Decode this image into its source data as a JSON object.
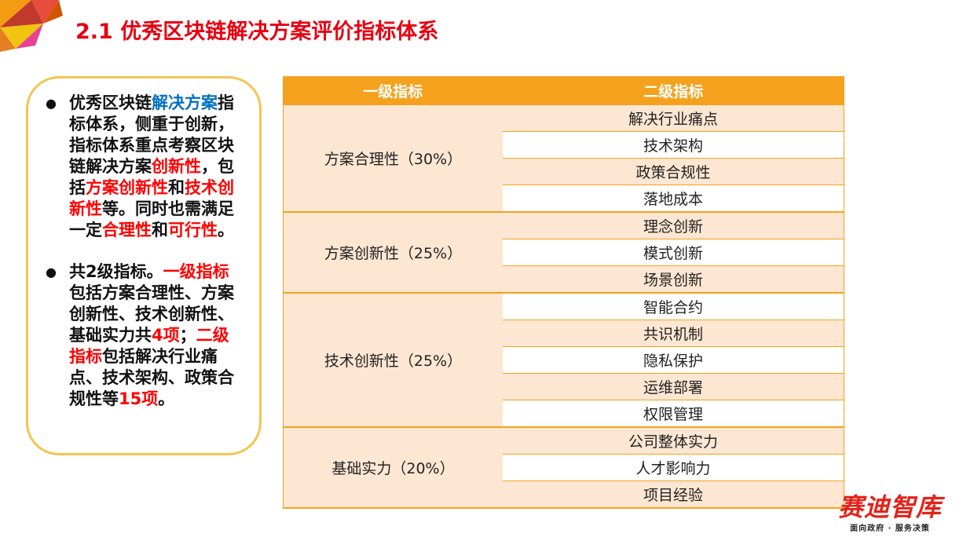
{
  "header": {
    "title": "2.1 优秀区块链解决方案评价指标体系"
  },
  "bullets": [
    {
      "runs": [
        {
          "text": "优秀区块链"
        },
        {
          "text": "解决方案",
          "color": "#0070c0"
        },
        {
          "text": "指标体系，侧重于创新，指标体系重点考察区块链解决方案"
        },
        {
          "text": "创新性",
          "color": "#ff0000"
        },
        {
          "text": "，包括"
        },
        {
          "text": "方案创新性",
          "color": "#ff0000"
        },
        {
          "text": "和"
        },
        {
          "text": "技术创新性",
          "color": "#ff0000"
        },
        {
          "text": "等。同时也需满足一定"
        },
        {
          "text": "合理性",
          "color": "#ff0000"
        },
        {
          "text": "和"
        },
        {
          "text": "可行性",
          "color": "#ff0000"
        },
        {
          "text": "。"
        }
      ]
    },
    {
      "runs": [
        {
          "text": "共2级指标。"
        },
        {
          "text": "一级指标",
          "color": "#ff0000"
        },
        {
          "text": "包括方案合理性、方案创新性、技术创新性、基础实力共"
        },
        {
          "text": "4项",
          "color": "#ff0000"
        },
        {
          "text": "；"
        },
        {
          "text": "二级指标",
          "color": "#ff0000"
        },
        {
          "text": "包括解决行业痛点、技术架构、政策合规性等"
        },
        {
          "text": "15项",
          "color": "#ff0000"
        },
        {
          "text": "。"
        }
      ]
    }
  ],
  "table": {
    "headers": [
      "一级指标",
      "二级指标"
    ],
    "groups": [
      {
        "name": "方案合理性（30%）",
        "items": [
          "解决行业痛点",
          "技术架构",
          "政策合规性",
          "落地成本"
        ]
      },
      {
        "name": "方案创新性（25%）",
        "items": [
          "理念创新",
          "模式创新",
          "场景创新"
        ]
      },
      {
        "name": "技术创新性（25%）",
        "items": [
          "智能合约",
          "共识机制",
          "隐私保护",
          "运维部署",
          "权限管理"
        ]
      },
      {
        "name": "基础实力（20%）",
        "items": [
          "公司整体实力",
          "人才影响力",
          "项目经验"
        ]
      }
    ]
  },
  "logo": {
    "name": "赛迪智库",
    "tagline": "面向政府 · 服务决策"
  }
}
